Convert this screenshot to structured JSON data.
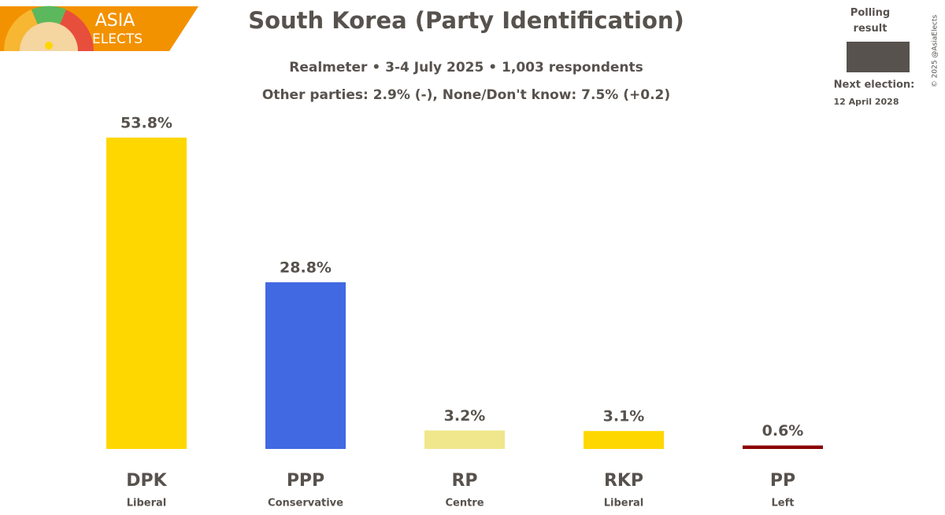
{
  "logo": {
    "line1": "ASIA",
    "line2": "ELECTS"
  },
  "credit": "© 2025 @AsiaElects",
  "chart_data": {
    "type": "bar",
    "title": "South Korea (Party Identification)",
    "subtitle": "Realmeter • 3-4 July 2025 • 1,003 respondents",
    "note": "Other parties: 2.9% (-), None/Don't know: 7.5% (+0.2)",
    "categories": [
      "DPK",
      "PPP",
      "RP",
      "RKP",
      "PP"
    ],
    "ideologies": [
      "Liberal",
      "Conservative",
      "Centre",
      "Liberal",
      "Left"
    ],
    "values": [
      53.8,
      28.8,
      3.2,
      3.1,
      0.6
    ],
    "value_labels": [
      "53.8%",
      "28.8%",
      "3.2%",
      "3.1%",
      "0.6%"
    ],
    "colors": [
      "#fed700",
      "#4169e1",
      "#f0e68c",
      "#fed700",
      "#8b0000"
    ],
    "legend": {
      "label": "Polling result",
      "color": "#57524d"
    },
    "next_election": {
      "label": "Next election:",
      "date": "12 April 2028"
    }
  }
}
